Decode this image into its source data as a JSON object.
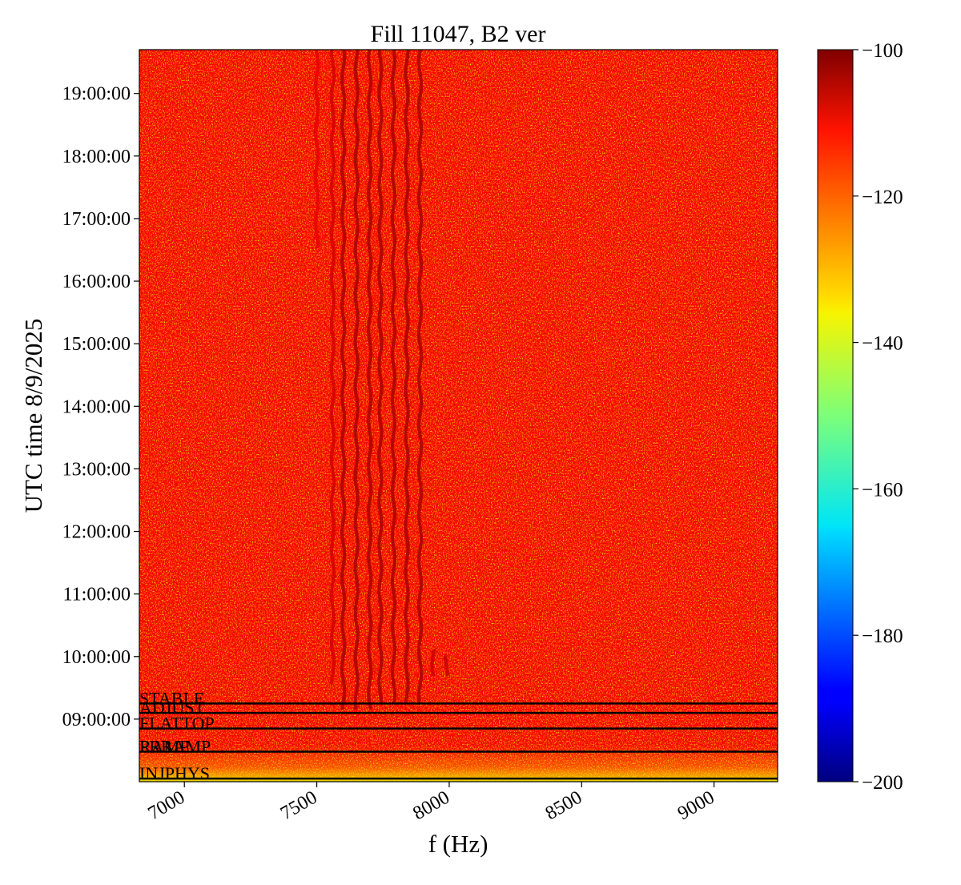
{
  "chart_data": {
    "type": "heatmap",
    "title": "Fill 11047, B2 ver",
    "xlabel": "f (Hz)",
    "ylabel": "UTC time 8/9/2025",
    "xlim": [
      6830,
      9240
    ],
    "x_ticks": [
      7000,
      7500,
      8000,
      8500,
      9000
    ],
    "x_tick_labels": [
      "7000",
      "7500",
      "8000",
      "8500",
      "9000"
    ],
    "y_range_hours": [
      8.0,
      19.7
    ],
    "y_ticks_hours": [
      9,
      10,
      11,
      12,
      13,
      14,
      15,
      16,
      17,
      18,
      19
    ],
    "y_tick_labels": [
      "09:00:00",
      "10:00:00",
      "11:00:00",
      "12:00:00",
      "13:00:00",
      "14:00:00",
      "15:00:00",
      "16:00:00",
      "17:00:00",
      "18:00:00",
      "19:00:00"
    ],
    "colorbar": {
      "colormap": "jet",
      "range": [
        -200,
        -100
      ],
      "ticks": [
        -100,
        -120,
        -140,
        -160,
        -180,
        -200
      ],
      "tick_labels": [
        "−100",
        "−120",
        "−140",
        "−160",
        "−180",
        "−200"
      ]
    },
    "background_level_db": -112,
    "phase_markers": [
      {
        "label": "STABLE",
        "time_hours": 9.25
      },
      {
        "label": "ADJUST",
        "time_hours": 9.1
      },
      {
        "label": "FLATTOP",
        "time_hours": 8.85
      },
      {
        "label": "RAMP",
        "time_hours": 8.48
      },
      {
        "label": "PRRAMP",
        "time_hours": 8.48
      },
      {
        "label": "INJPHYS",
        "time_hours": 8.05
      }
    ],
    "spectral_lines": [
      {
        "freq_hz": 7600,
        "start_hours": 9.1,
        "level_db": -104
      },
      {
        "freq_hz": 7650,
        "start_hours": 9.1,
        "level_db": -104
      },
      {
        "freq_hz": 7700,
        "start_hours": 9.1,
        "level_db": -104
      },
      {
        "freq_hz": 7740,
        "start_hours": 9.2,
        "level_db": -104
      },
      {
        "freq_hz": 7790,
        "start_hours": 9.2,
        "level_db": -104
      },
      {
        "freq_hz": 7840,
        "start_hours": 9.2,
        "level_db": -104
      },
      {
        "freq_hz": 7890,
        "start_hours": 9.2,
        "level_db": -104
      },
      {
        "freq_hz": 7560,
        "start_hours": 9.5,
        "level_db": -108
      },
      {
        "freq_hz": 7500,
        "start_hours": 16.5,
        "level_db": -110
      },
      {
        "freq_hz": 7940,
        "start_hours": 9.6,
        "end_hours": 10.1,
        "level_db": -107
      },
      {
        "freq_hz": 7990,
        "start_hours": 9.6,
        "end_hours": 10.0,
        "level_db": -107
      }
    ]
  }
}
